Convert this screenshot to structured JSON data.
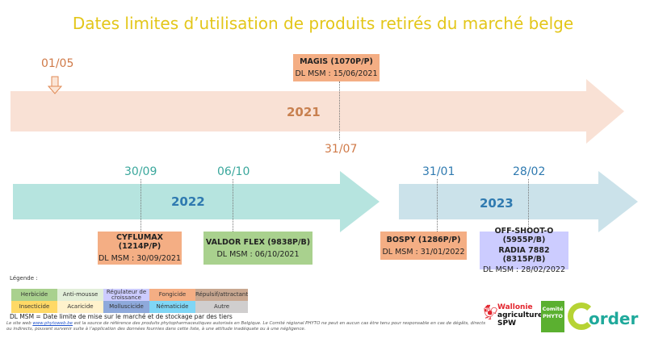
{
  "title": "Dates limites d’utilisation de produits retirés du marché belge",
  "timelines": [
    {
      "year": "2021",
      "color": "#f9e1d5",
      "label_color": "#c8804f"
    },
    {
      "year": "2022",
      "color": "#b6e4df",
      "label_color": "#2f7ab0"
    },
    {
      "year": "2023",
      "color": "#cbe2ea",
      "label_color": "#2f7ab0"
    }
  ],
  "dates": {
    "d0105": "01/05",
    "d3107": "31/07",
    "d3009": "30/09",
    "d0610": "06/10",
    "d3101": "31/01",
    "d2802": "28/02"
  },
  "products": [
    {
      "name": "MAGIS (1070P/P)",
      "dl": "DL MSM : 15/06/2021",
      "color": "#f4ae84"
    },
    {
      "name": "CYFLUMAX (1214P/P)",
      "dl": "DL MSM : 30/09/2021",
      "color": "#f4ae84"
    },
    {
      "name": "VALDOR FLEX (9838P/B)",
      "dl": "DL MSM : 06/10/2021",
      "color": "#a9d18e"
    },
    {
      "name": "BOSPY (1286P/P)",
      "dl": "DL MSM : 31/01/2022",
      "color": "#f4ae84"
    },
    {
      "name": "OFF-SHOOT-O (5955P/B)",
      "name2": "RADIA 7882 (8315P/B)",
      "dl": "DL MSM : 28/02/2022",
      "color": "#ccccff"
    }
  ],
  "legend": {
    "label": "Légende :",
    "rows": [
      [
        {
          "t": "Herbicide",
          "c": "#a9d18e"
        },
        {
          "t": "Anti-mousse",
          "c": "#e2efd9"
        },
        {
          "t": "Régulateur de croissance",
          "c": "#ccccff"
        },
        {
          "t": "Fongicide",
          "c": "#f4ae84"
        },
        {
          "t": "Répulsif/attractant",
          "c": "#c9a891"
        }
      ],
      [
        {
          "t": "Insecticide",
          "c": "#ffd966"
        },
        {
          "t": "Acaricide",
          "c": "#fff2cc"
        },
        {
          "t": "Molluscicide",
          "c": "#8ea9db"
        },
        {
          "t": "Nématicide",
          "c": "#7fd6f5"
        },
        {
          "t": "Autre",
          "c": "#d0cece"
        }
      ]
    ]
  },
  "dlmsm_note": "DL MSM = Date limite de mise sur le marché et de stockage par des tiers",
  "disclaimer": {
    "pre": "Le site web ",
    "link": "www.phytoweb.be",
    "post": " est la source de référence des produits phytopharmaceutiques autorisés en Belgique.  Le Comité régional PHYTO ne peut en aucun cas être tenu pour responsable en cas de dégâts, directs ou indirects, pouvant survenir suite à l’application des données fournies dans cette liste, à une attitude inadéquate ou à une négligence."
  },
  "logos": {
    "wallonie": [
      "Wallonie",
      "agriculture",
      "SPW"
    ],
    "phyto": [
      "Comité",
      "PHYTO"
    ],
    "corder": "Corder"
  }
}
